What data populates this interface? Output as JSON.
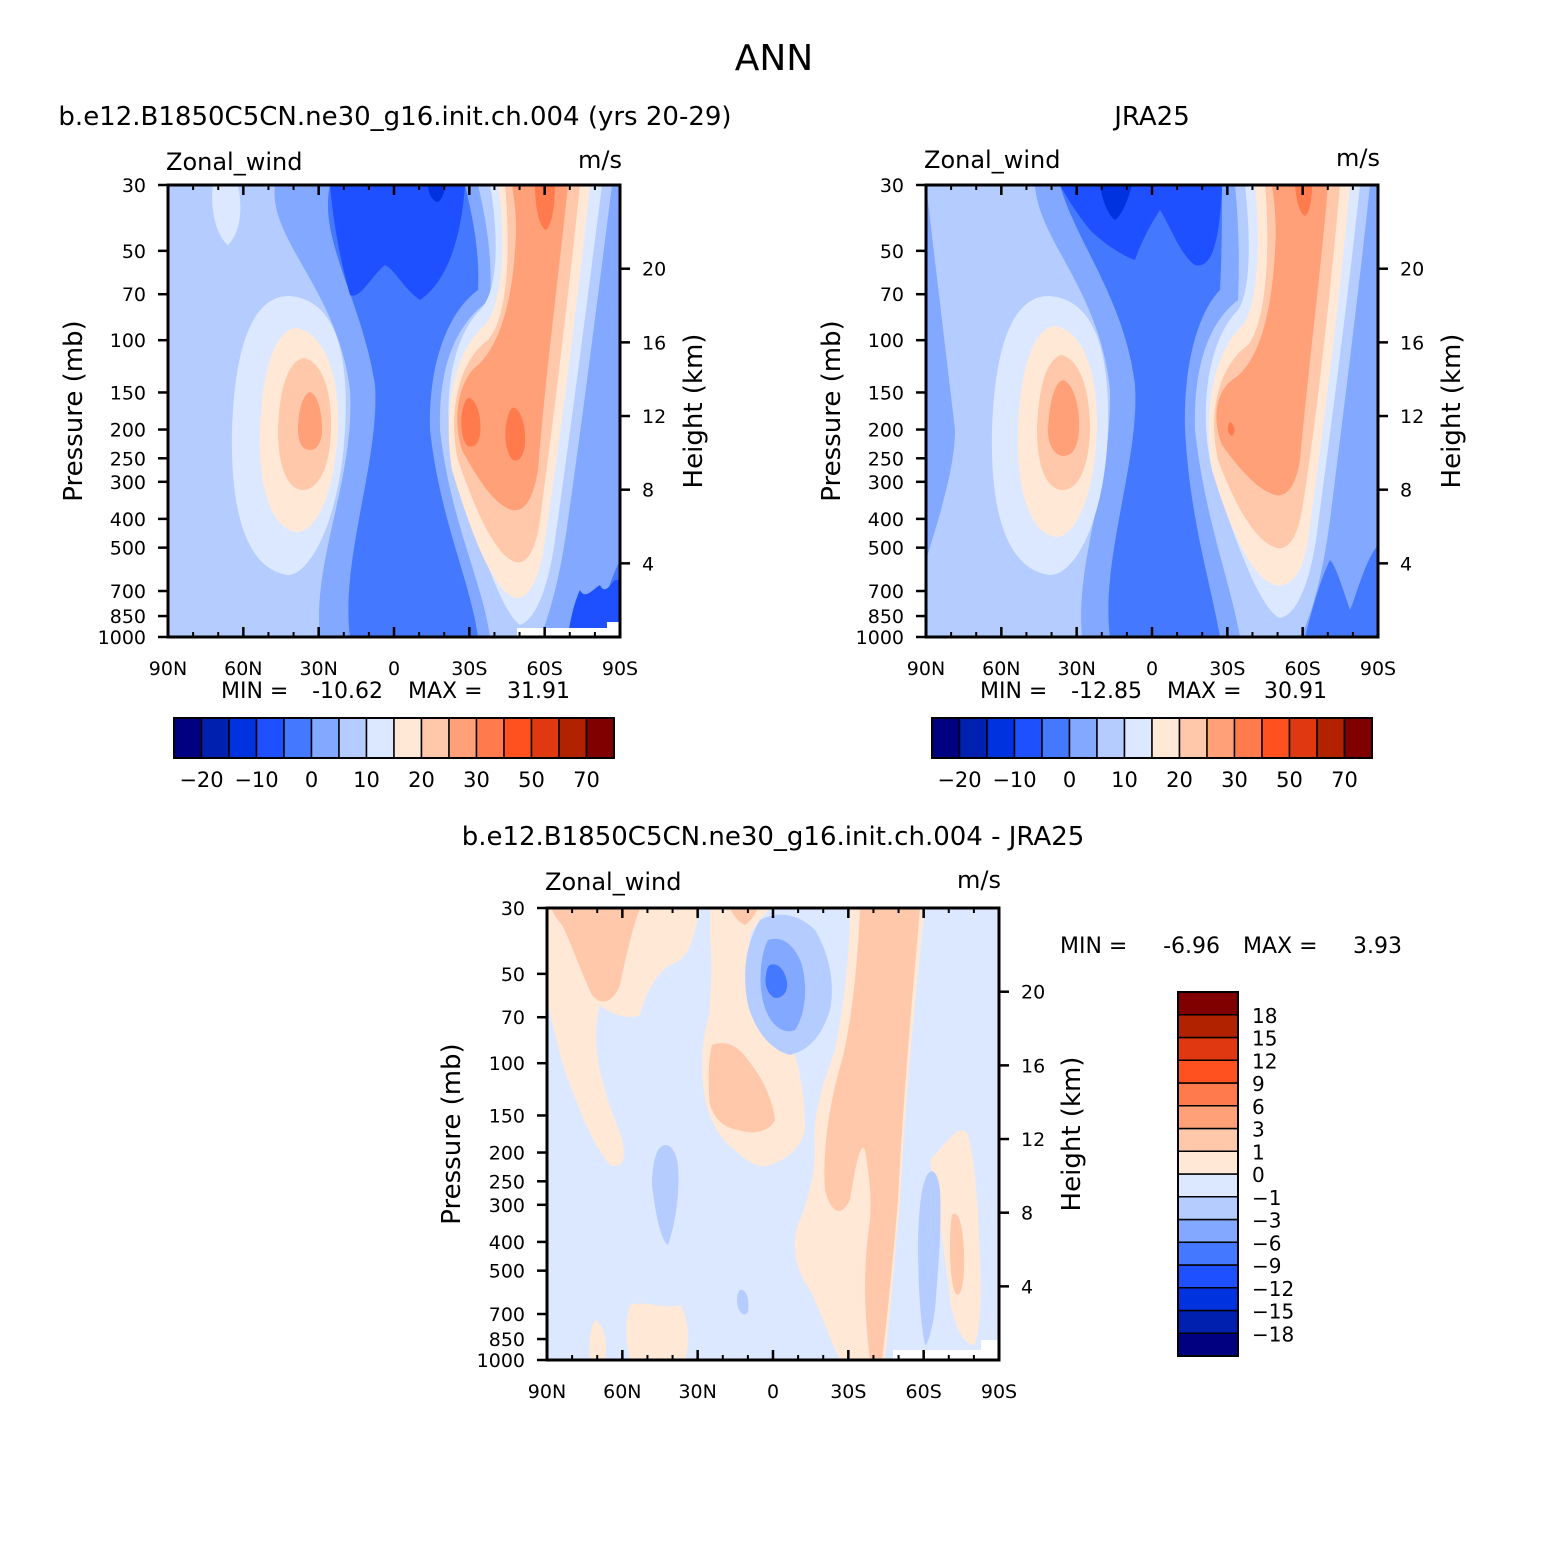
{
  "figure": {
    "title": "ANN"
  },
  "chart_data": [
    {
      "type": "heatmap",
      "title": "b.e12.B1850C5CN.ne30_g16.init.ch.004 (yrs 20-29)",
      "variable_label": "Zonal_wind",
      "units": "m/s",
      "xticks": [
        "90N",
        "60N",
        "30N",
        "0",
        "30S",
        "60S",
        "90S"
      ],
      "xlim": [
        90,
        -90
      ],
      "ylabel": "Pressure (mb)",
      "yticks": [
        "30",
        "50",
        "70",
        "100",
        "150",
        "200",
        "250",
        "300",
        "400",
        "500",
        "700",
        "850",
        "1000"
      ],
      "ylim": [
        1000,
        30
      ],
      "right_ylabel": "Height (km)",
      "right_yticks": [
        "4",
        "8",
        "12",
        "16",
        "20"
      ],
      "stats": {
        "min_label": "MIN =",
        "min": "-10.62",
        "max_label": "MAX =",
        "max": "31.91"
      },
      "colorbar": {
        "orientation": "horizontal",
        "colors": [
          "#000080",
          "#0020b0",
          "#0032e0",
          "#1e50ff",
          "#4478ff",
          "#82a8ff",
          "#b4ccff",
          "#dbe8ff",
          "#ffe8d6",
          "#ffc8aa",
          "#ffa078",
          "#ff7a4c",
          "#ff5020",
          "#e03810",
          "#b02200",
          "#800000"
        ],
        "labels": [
          "-20",
          "-10",
          "0",
          "10",
          "20",
          "30",
          "50",
          "70"
        ]
      },
      "peaks": [
        {
          "lat": 35,
          "p": 200,
          "value": 25
        },
        {
          "lat": -30,
          "p": 200,
          "value": 31.91
        },
        {
          "lat": -50,
          "p": 200,
          "value": 30
        },
        {
          "lat": -60,
          "p": 35,
          "value": 28
        },
        {
          "lat": 5,
          "p": 40,
          "value": -10.62
        }
      ]
    },
    {
      "type": "heatmap",
      "title": "JRA25",
      "variable_label": "Zonal_wind",
      "units": "m/s",
      "xticks": [
        "90N",
        "60N",
        "30N",
        "0",
        "30S",
        "60S",
        "90S"
      ],
      "xlim": [
        90,
        -90
      ],
      "ylabel": "Pressure (mb)",
      "yticks": [
        "30",
        "50",
        "70",
        "100",
        "150",
        "200",
        "250",
        "300",
        "400",
        "500",
        "700",
        "850",
        "1000"
      ],
      "ylim": [
        1000,
        30
      ],
      "right_ylabel": "Height (km)",
      "right_yticks": [
        "4",
        "8",
        "12",
        "16",
        "20"
      ],
      "stats": {
        "min_label": "MIN =",
        "min": "-12.85",
        "max_label": "MAX =",
        "max": "30.91"
      },
      "colorbar": {
        "orientation": "horizontal",
        "colors": [
          "#000080",
          "#0020b0",
          "#0032e0",
          "#1e50ff",
          "#4478ff",
          "#82a8ff",
          "#b4ccff",
          "#dbe8ff",
          "#ffe8d6",
          "#ffc8aa",
          "#ffa078",
          "#ff7a4c",
          "#ff5020",
          "#e03810",
          "#b02200",
          "#800000"
        ],
        "labels": [
          "-20",
          "-10",
          "0",
          "10",
          "20",
          "30",
          "50",
          "70"
        ]
      },
      "peaks": [
        {
          "lat": 35,
          "p": 200,
          "value": 25
        },
        {
          "lat": -30,
          "p": 200,
          "value": 30.91
        },
        {
          "lat": -60,
          "p": 35,
          "value": 26
        },
        {
          "lat": 15,
          "p": 40,
          "value": -12.85
        }
      ]
    },
    {
      "type": "heatmap",
      "title": "b.e12.B1850C5CN.ne30_g16.init.ch.004 - JRA25",
      "variable_label": "Zonal_wind",
      "units": "m/s",
      "xticks": [
        "90N",
        "60N",
        "30N",
        "0",
        "30S",
        "60S",
        "90S"
      ],
      "xlim": [
        90,
        -90
      ],
      "ylabel": "Pressure (mb)",
      "yticks": [
        "30",
        "50",
        "70",
        "100",
        "150",
        "200",
        "250",
        "300",
        "400",
        "500",
        "700",
        "850",
        "1000"
      ],
      "ylim": [
        1000,
        30
      ],
      "right_ylabel": "Height (km)",
      "right_yticks": [
        "4",
        "8",
        "12",
        "16",
        "20"
      ],
      "stats": {
        "min_label": "MIN =",
        "min": "-6.96",
        "max_label": "MAX =",
        "max": "3.93"
      },
      "colorbar": {
        "orientation": "vertical",
        "colors": [
          "#000080",
          "#0020b0",
          "#0032e0",
          "#1e50ff",
          "#4478ff",
          "#82a8ff",
          "#b4ccff",
          "#dbe8ff",
          "#ffe8d6",
          "#ffc8aa",
          "#ffa078",
          "#ff7a4c",
          "#ff5020",
          "#e03810",
          "#b02200",
          "#800000"
        ],
        "labels": [
          "-18",
          "-15",
          "-12",
          "-9",
          "-6",
          "-3",
          "-1",
          "0",
          "1",
          "3",
          "6",
          "9",
          "12",
          "15",
          "18"
        ]
      }
    }
  ]
}
